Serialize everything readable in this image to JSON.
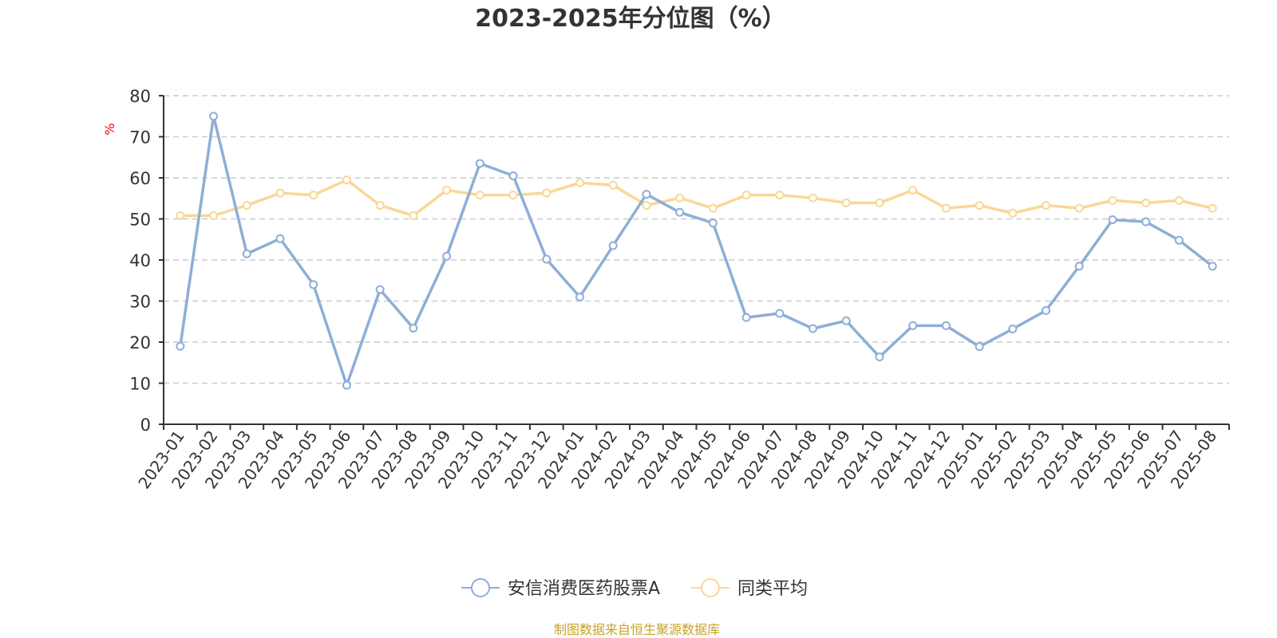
{
  "chart_data": {
    "type": "line",
    "title": "2023-2025年分位图（%）",
    "ylabel": "%",
    "xlabel": "",
    "ylim": [
      0,
      80
    ],
    "yticks": [
      "0",
      "10",
      "20",
      "30",
      "40",
      "50",
      "60",
      "70",
      "80"
    ],
    "grid": true,
    "legend_position": "bottom-center",
    "categories": [
      "2023-01",
      "2023-02",
      "2023-03",
      "2023-04",
      "2023-05",
      "2023-06",
      "2023-07",
      "2023-08",
      "2023-09",
      "2023-10",
      "2023-11",
      "2023-12",
      "2024-01",
      "2024-02",
      "2024-03",
      "2024-04",
      "2024-05",
      "2024-06",
      "2024-07",
      "2024-08",
      "2024-09",
      "2024-10",
      "2024-11",
      "2024-12",
      "2025-01",
      "2025-02",
      "2025-03",
      "2025-04",
      "2025-05",
      "2025-06",
      "2025-07",
      "2025-08"
    ],
    "series": [
      {
        "name": "安信消费医药股票A",
        "color": "#8eaed8",
        "values": [
          19,
          75,
          41.5,
          45.2,
          34,
          9.5,
          32.8,
          23.4,
          40.9,
          63.5,
          60.5,
          40.2,
          31,
          43.5,
          56,
          51.6,
          49,
          26,
          27,
          23.3,
          25.2,
          16.4,
          24,
          24,
          18.9,
          23.2,
          27.7,
          38.5,
          49.8,
          49.3,
          44.8,
          38.5
        ]
      },
      {
        "name": "同类平均",
        "color": "#fad797",
        "values": [
          50.8,
          50.8,
          53.3,
          56.3,
          55.8,
          59.5,
          53.3,
          50.8,
          57,
          55.8,
          55.8,
          56.3,
          58.8,
          58.2,
          53.3,
          55.1,
          52.6,
          55.8,
          55.8,
          55.1,
          53.9,
          53.9,
          57,
          52.6,
          53.3,
          51.4,
          53.3,
          52.6,
          54.5,
          53.9,
          54.5,
          52.6
        ]
      }
    ]
  },
  "source_note": "制图数据来自恒生聚源数据库"
}
